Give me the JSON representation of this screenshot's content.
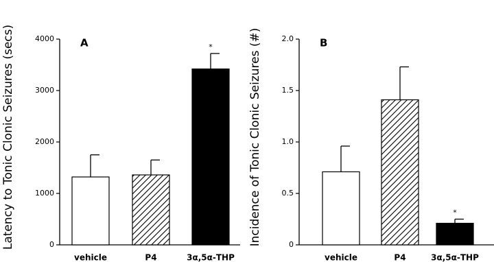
{
  "chart_data": [
    {
      "type": "bar",
      "label": "A",
      "ylabel": "Latency to Tonic Clonic Seizures (secs)",
      "categories": [
        "vehicle",
        "P4",
        "3α,5α-THP"
      ],
      "values": [
        1320,
        1360,
        3420
      ],
      "errors": [
        430,
        290,
        300
      ],
      "fills": [
        "white",
        "hatch",
        "black"
      ],
      "significance_labels": [
        null,
        null,
        "*"
      ],
      "ylim": [
        0,
        4000
      ],
      "yticks": [
        0,
        1000,
        2000,
        3000,
        4000
      ]
    },
    {
      "type": "bar",
      "label": "B",
      "ylabel": "Incidence of Tonic Clonic Seizures (#)",
      "categories": [
        "vehicle",
        "P4",
        "3α,5α-THP"
      ],
      "values": [
        0.71,
        1.41,
        0.21
      ],
      "errors": [
        0.25,
        0.32,
        0.04
      ],
      "fills": [
        "white",
        "hatch",
        "black"
      ],
      "significance_labels": [
        null,
        null,
        "*"
      ],
      "ylim": [
        0,
        2.0
      ],
      "yticks": [
        0,
        {
          "value": 0.5,
          "label": "0.5"
        },
        {
          "value": 1.0,
          "label": "1.0"
        },
        {
          "value": 1.5,
          "label": "1.5"
        },
        {
          "value": 2.0,
          "label": "2.0"
        }
      ]
    }
  ]
}
